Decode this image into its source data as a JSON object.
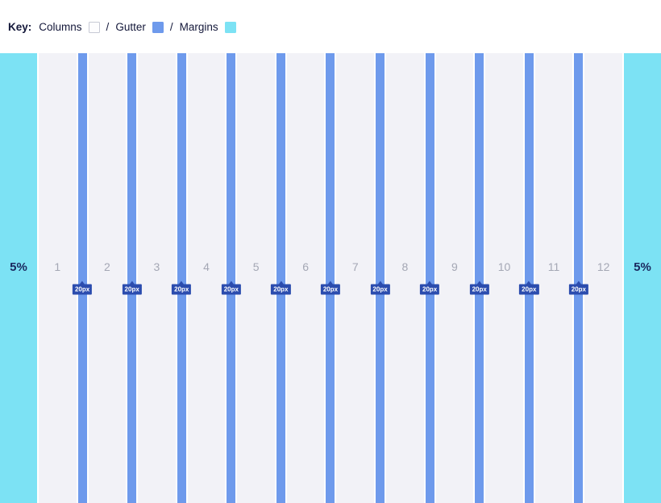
{
  "legend": {
    "key_label": "Key:",
    "separator": "/",
    "items": [
      {
        "label": "Columns",
        "swatch": "columns",
        "swatch_color": "#fdfdfe"
      },
      {
        "label": "Gutter",
        "swatch": "gutter",
        "swatch_color": "#6e9aec"
      },
      {
        "label": "Margins",
        "swatch": "margins",
        "swatch_color": "#7ce2f4"
      }
    ]
  },
  "grid": {
    "left_margin_label": "5%",
    "right_margin_label": "5%",
    "gutter_label": "20px",
    "columns": [
      "1",
      "2",
      "3",
      "4",
      "5",
      "6",
      "7",
      "8",
      "9",
      "10",
      "11",
      "12"
    ]
  },
  "colors": {
    "margin": "#7ce2f4",
    "column": "#f2f2f7",
    "gutter": "#6e9aec",
    "badge": "#2b4cae",
    "column_number": "#a4a7b4",
    "legend_text": "#14183a",
    "margin_text": "#1b2a60"
  }
}
